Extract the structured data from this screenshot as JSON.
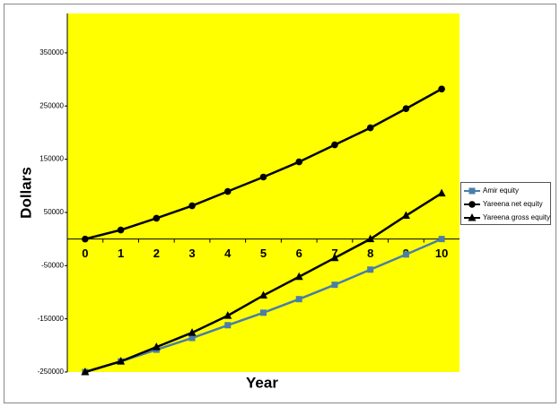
{
  "chart_data": {
    "type": "line",
    "x_label": "Year",
    "y_label": "Dollars",
    "categories": [
      "0",
      "1",
      "2",
      "3",
      "4",
      "5",
      "6",
      "7",
      "8",
      "9",
      "10"
    ],
    "series": [
      {
        "name": "Amir equity",
        "color": "#4a7ea8",
        "marker": "square",
        "values": [
          -250000,
          -230000,
          -208000,
          -186000,
          -162000,
          -138500,
          -113000,
          -86000,
          -57500,
          -29000,
          0
        ]
      },
      {
        "name": "Yareena net equity",
        "color": "#000000",
        "marker": "circle",
        "values": [
          0,
          17000,
          39000,
          62500,
          89500,
          116500,
          145000,
          177000,
          209000,
          245000,
          282000
        ]
      },
      {
        "name": "Yareena gross equity",
        "color": "#000000",
        "marker": "triangle",
        "values": [
          -250000,
          -230000,
          -203000,
          -176000,
          -144000,
          -106000,
          -71000,
          -35500,
          0,
          44000,
          86000
        ]
      }
    ],
    "ylim": [
      -250000,
      424000
    ],
    "yticks": [
      -250000,
      -150000,
      -50000,
      50000,
      150000,
      250000,
      350000
    ],
    "plot_background": "#ffff00",
    "grid": false,
    "legend": "right"
  }
}
